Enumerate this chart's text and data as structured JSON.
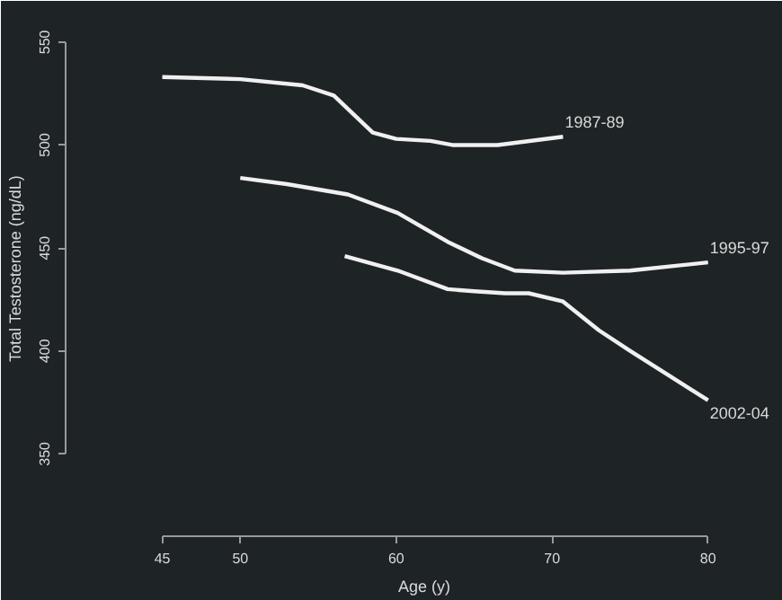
{
  "chart_data": {
    "type": "line",
    "xlabel": "Age (y)",
    "ylabel": "Total Testosterone (ng/dL)",
    "xlim": [
      38.8,
      84.8
    ],
    "ylim": [
      310,
      570
    ],
    "xticks": [
      45,
      50,
      60,
      70,
      80
    ],
    "yticks": [
      350,
      400,
      450,
      500,
      550
    ],
    "grid": false,
    "line_style": "solid",
    "marker": "none",
    "series": [
      {
        "name": "1987-89",
        "color": "#f0f0f0",
        "x": [
          45,
          50,
          54,
          56,
          58.5,
          60,
          62.2,
          63.6,
          66.5,
          70.7
        ],
        "values": [
          533,
          532,
          529,
          524,
          506,
          503,
          502,
          500,
          500,
          504
        ]
      },
      {
        "name": "1995-97",
        "color": "#f0f0f0",
        "x": [
          50,
          53,
          56.9,
          60.1,
          63.3,
          65.5,
          67.6,
          70.7,
          75,
          80
        ],
        "values": [
          484,
          481,
          476,
          467,
          453,
          445,
          439,
          438,
          439,
          443
        ]
      },
      {
        "name": "2002-04",
        "color": "#f0f0f0",
        "x": [
          56.7,
          60.1,
          63.3,
          65,
          67,
          68.5,
          70.7,
          73,
          75,
          77.5,
          80
        ],
        "values": [
          446,
          439,
          430,
          429,
          428,
          428,
          424,
          410,
          400,
          388,
          376
        ]
      }
    ]
  }
}
